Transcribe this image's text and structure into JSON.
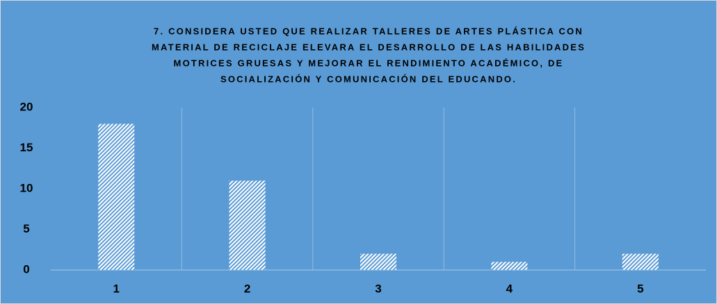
{
  "chart_data": {
    "type": "bar",
    "title": [
      "7.    CONSIDERA USTED QUE REALIZAR TALLERES DE ARTES PLÁSTICA CON",
      "MATERIAL DE RECICLAJE ELEVARA EL DESARROLLO DE LAS HABILIDADES",
      "MOTRICES GRUESAS Y MEJORAR EL RENDIMIENTO ACADÉMICO, DE",
      "SOCIALIZACIÓN Y COMUNICACIÓN DEL EDUCANDO."
    ],
    "categories": [
      "1",
      "2",
      "3",
      "4",
      "5"
    ],
    "values": [
      18,
      11,
      2,
      1,
      2
    ],
    "color": "#ffffff",
    "ylim": [
      0,
      20
    ],
    "yticks": [
      0,
      5,
      10,
      15,
      20
    ],
    "grid": false
  }
}
